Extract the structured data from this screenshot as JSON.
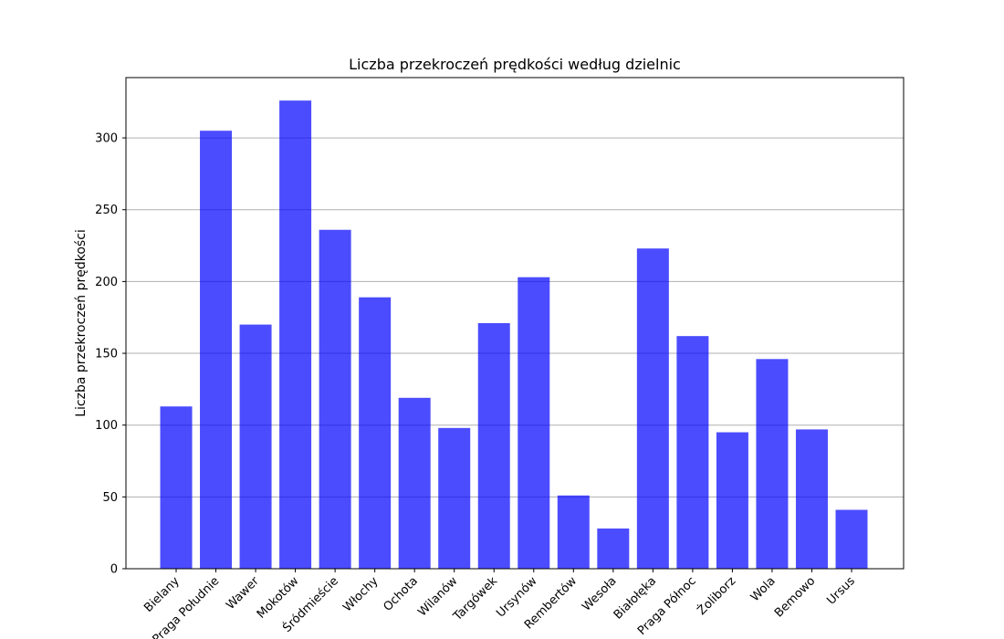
{
  "chart_data": {
    "type": "bar",
    "title": "Liczba przekroczeń prędkości według dzielnic",
    "xlabel": "",
    "ylabel": "Liczba przekroczeń prędkości",
    "categories": [
      "Bielany",
      "Praga Południe",
      "Wawer",
      "Mokotów",
      "Śródmieście",
      "Włochy",
      "Ochota",
      "Wilanów",
      "Targówek",
      "Ursynów",
      "Rembertów",
      "Wesoła",
      "Białołęka",
      "Praga Północ",
      "Żoliborz",
      "Wola",
      "Bemowo",
      "Ursus"
    ],
    "values": [
      113,
      305,
      170,
      326,
      236,
      189,
      119,
      98,
      171,
      203,
      51,
      28,
      223,
      162,
      95,
      146,
      97,
      41
    ],
    "ylim": [
      0,
      342
    ],
    "yticks": [
      0,
      50,
      100,
      150,
      200,
      250,
      300
    ],
    "grid": "y",
    "bar_color": "#0000ff",
    "bar_alpha": 0.7
  }
}
